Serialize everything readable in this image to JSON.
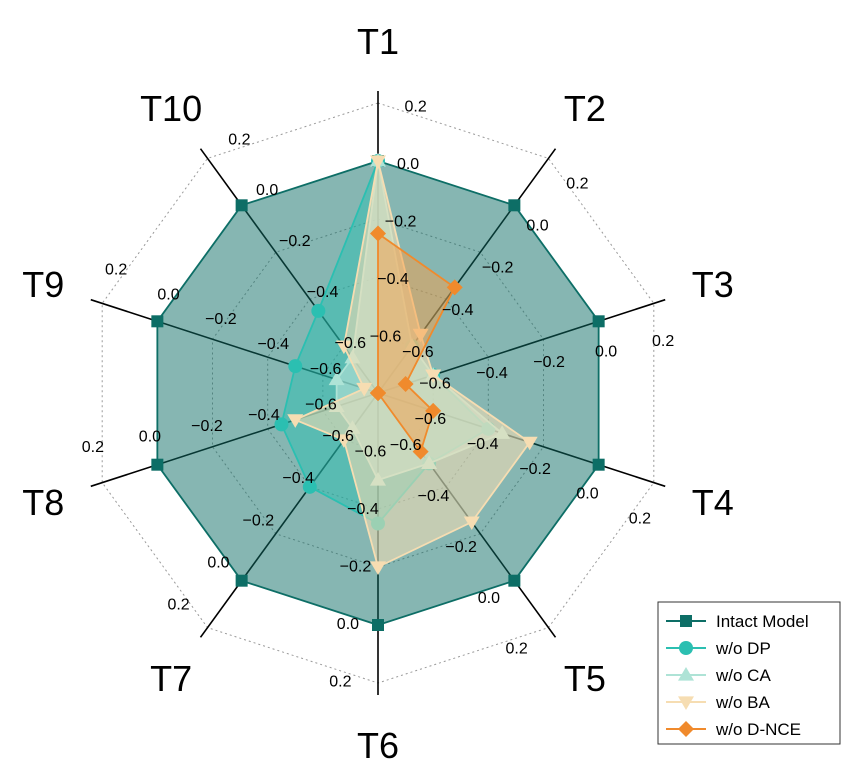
{
  "chart_data": {
    "type": "radar",
    "axes": [
      "T1",
      "T2",
      "T3",
      "T4",
      "T5",
      "T6",
      "T7",
      "T8",
      "T9",
      "T10"
    ],
    "rlim": [
      -0.8,
      0.2
    ],
    "rticks": [
      -0.6,
      -0.4,
      -0.2,
      0.0,
      0.2
    ],
    "rtick_labels": [
      "−0.6",
      "−0.4",
      "−0.2",
      "0.0",
      "0.2"
    ],
    "grid": true,
    "legend_position": "bottom-right",
    "series": [
      {
        "name": "Intact Model",
        "marker": "square",
        "color": "#0d6e66",
        "fill": "#0d6e66",
        "fill_opacity": 0.5,
        "values": [
          0.0,
          0.0,
          0.0,
          0.0,
          0.0,
          0.0,
          0.0,
          0.0,
          0.0,
          0.0
        ]
      },
      {
        "name": "w/o DP",
        "marker": "circle",
        "color": "#2bbfb1",
        "fill": "#2bbfb1",
        "fill_opacity": 0.5,
        "values": [
          0.0,
          -0.6,
          -0.6,
          -0.4,
          -0.5,
          -0.35,
          -0.4,
          -0.45,
          -0.5,
          -0.45
        ]
      },
      {
        "name": "w/o CA",
        "marker": "triangle-up",
        "color": "#aee3d6",
        "fill": "#bfe8dc",
        "fill_opacity": 0.55,
        "values": [
          0.0,
          -0.6,
          -0.6,
          -0.35,
          -0.5,
          -0.5,
          -0.65,
          -0.65,
          -0.65,
          -0.65
        ]
      },
      {
        "name": "w/o BA",
        "marker": "triangle-down",
        "color": "#f6ddb2",
        "fill": "#f8dfb5",
        "fill_opacity": 0.55,
        "values": [
          0.0,
          -0.55,
          -0.6,
          -0.25,
          -0.25,
          -0.2,
          -0.6,
          -0.5,
          -0.75,
          -0.6
        ]
      },
      {
        "name": "w/o D-NCE",
        "marker": "diamond",
        "color": "#f08a2c",
        "fill": "#f5a04a",
        "fill_opacity": 0.5,
        "values": [
          -0.25,
          -0.35,
          -0.7,
          -0.6,
          -0.55,
          -0.8,
          -0.8,
          -0.8,
          -0.8,
          -0.8
        ]
      }
    ]
  }
}
